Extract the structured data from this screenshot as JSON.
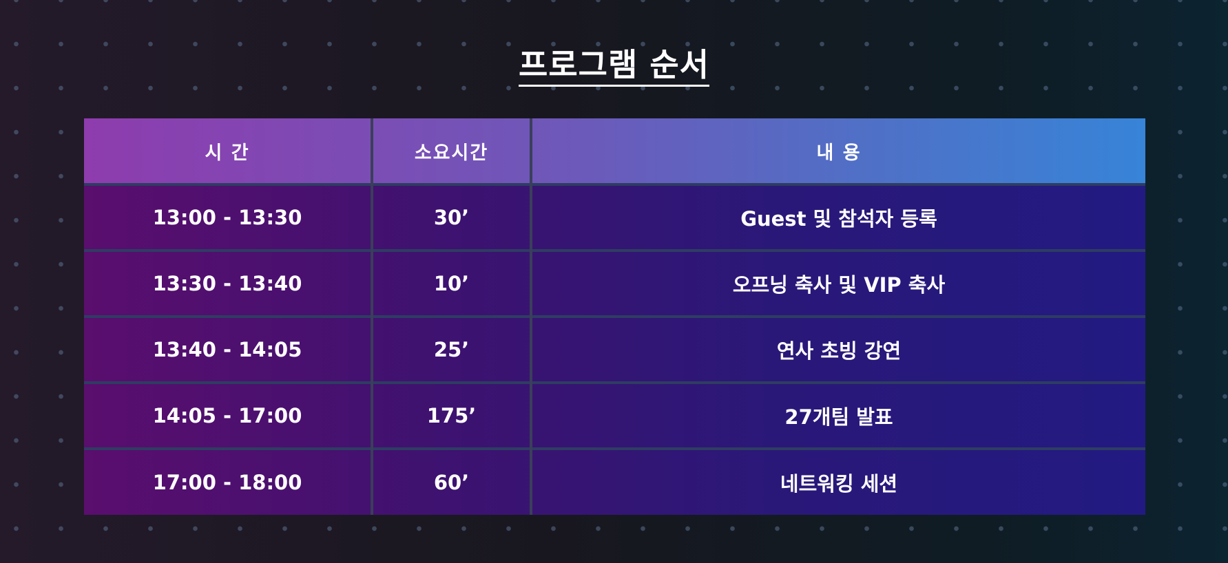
{
  "title": "프로그램 순서",
  "headers": {
    "time": "시  간",
    "duration": "소요시간",
    "content": "내  용"
  },
  "rows": [
    {
      "time": "13:00 - 13:30",
      "duration": "30’",
      "content": "Guest 및 참석자 등록"
    },
    {
      "time": "13:30 - 13:40",
      "duration": "10’",
      "content": "오프닝 축사 및 VIP 축사"
    },
    {
      "time": "13:40 - 14:05",
      "duration": "25’",
      "content": "연사 초빙 강연"
    },
    {
      "time": "14:05 - 17:00",
      "duration": "175’",
      "content": "27개팀 발표"
    },
    {
      "time": "17:00 - 18:00",
      "duration": "60’",
      "content": "네트워킹 세션"
    }
  ],
  "colors": {
    "header_gradient_start": "#8e3cae",
    "header_gradient_end": "#3784d8",
    "body_gradient_start": "#5a0e6e",
    "body_gradient_end": "#221a82"
  }
}
